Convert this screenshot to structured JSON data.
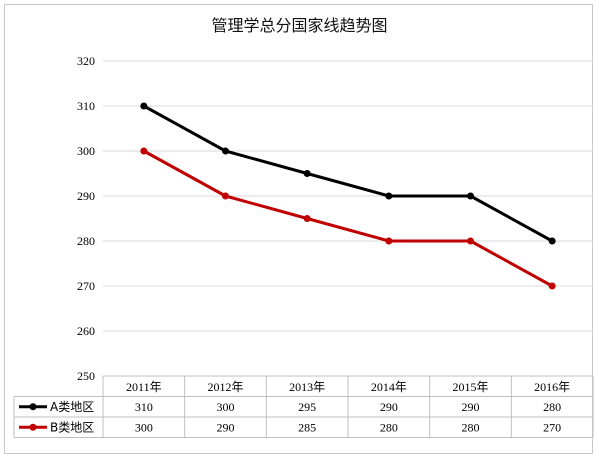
{
  "chart_data": {
    "type": "line",
    "title": "管理学总分国家线趋势图",
    "categories": [
      "2011年",
      "2012年",
      "2013年",
      "2014年",
      "2015年",
      "2016年"
    ],
    "series": [
      {
        "name": "A类地区",
        "values": [
          310,
          300,
          295,
          290,
          290,
          280
        ],
        "color": "#000000"
      },
      {
        "name": "B类地区",
        "values": [
          300,
          290,
          285,
          280,
          280,
          270
        ],
        "color": "#c00000"
      }
    ],
    "ylim": [
      250,
      320
    ],
    "yticks": [
      250,
      260,
      270,
      280,
      290,
      300,
      310,
      320
    ],
    "grid": true,
    "legend": "data-table"
  }
}
